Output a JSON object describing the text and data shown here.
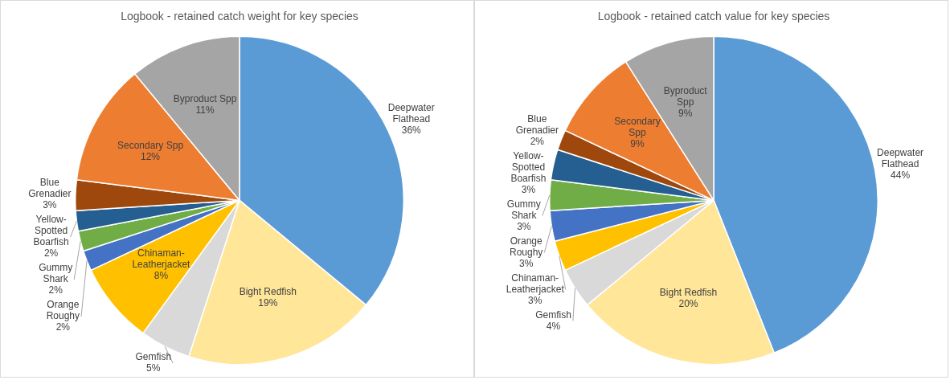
{
  "chart_data": [
    {
      "type": "pie",
      "title": "Logbook - retained catch weight for key species",
      "categories": [
        "Deepwater Flathead",
        "Bight Redfish",
        "Gemfish",
        "Chinaman-Leatherjacket",
        "Orange Roughy",
        "Gummy Shark",
        "Yellow-Spotted Boarfish",
        "Blue Grenadier",
        "Secondary Spp",
        "Byproduct Spp"
      ],
      "values": [
        36,
        19,
        5,
        8,
        2,
        2,
        2,
        3,
        12,
        11
      ],
      "value_labels": [
        "36%",
        "19%",
        "5%",
        "8%",
        "2%",
        "2%",
        "2%",
        "3%",
        "12%",
        "11%"
      ],
      "colors": [
        "#5b9bd5",
        "#ffe699",
        "#d9d9d9",
        "#ffc000",
        "#4472c4",
        "#70ad47",
        "#255e91",
        "#9e480e",
        "#ed7d31",
        "#a5a5a5"
      ]
    },
    {
      "type": "pie",
      "title": "Logbook - retained catch value for key species",
      "categories": [
        "Deepwater Flathead",
        "Bight Redfish",
        "Gemfish",
        "Chinaman-Leatherjacket",
        "Orange Roughy",
        "Gummy Shark",
        "Yellow-Spotted Boarfish",
        "Blue Grenadier",
        "Secondary Spp",
        "Byproduct Spp"
      ],
      "values": [
        44,
        20,
        4,
        3,
        3,
        3,
        3,
        2,
        9,
        9
      ],
      "value_labels": [
        "44%",
        "20%",
        "4%",
        "3%",
        "3%",
        "3%",
        "3%",
        "2%",
        "9%",
        "9%"
      ],
      "colors": [
        "#5b9bd5",
        "#ffe699",
        "#d9d9d9",
        "#ffc000",
        "#4472c4",
        "#70ad47",
        "#255e91",
        "#9e480e",
        "#ed7d31",
        "#a5a5a5"
      ]
    }
  ]
}
